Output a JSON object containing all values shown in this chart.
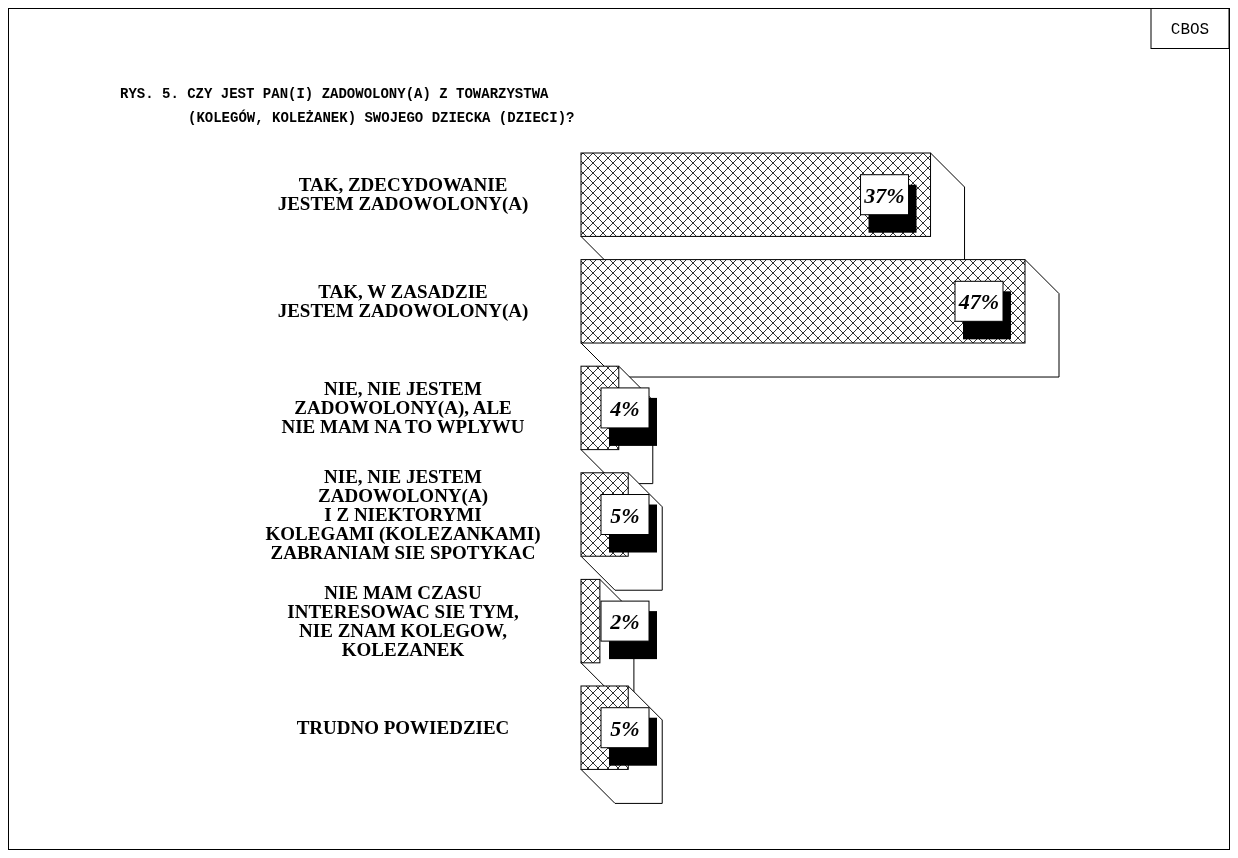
{
  "chart_data": {
    "type": "bar",
    "orientation": "horizontal",
    "title": "RYS. 5. CZY JEST PAN(I) ZADOWOLONY(A) Z TOWARZYSTWA\n(KOLEGÓW, KOLEŻANEK) SWOJEGO DZIECKA (DZIECI)?",
    "categories": [
      "TAK, ZDECYDOWANIE\nJESTEM ZADOWOLONY(A)",
      "TAK, W ZASADZIE\nJESTEM ZADOWOLONY(A)",
      "NIE, NIE JESTEM\nZADOWOLONY(A), ALE\nNIE MAM NA TO WPLYWU",
      "NIE, NIE JESTEM\nZADOWOLONY(A)\nI Z NIEKTORYMI\nKOLEGAMI (KOLEZANKAMI)\nZABRANIAM SIE SPOTYKAC",
      "NIE MAM CZASU\nINTERESOWAC SIE TYM,\nNIE ZNAM KOLEGOW,\nKOLEZANEK",
      "TRUDNO POWIEDZIEC"
    ],
    "values": [
      37,
      47,
      4,
      5,
      2,
      5
    ],
    "value_labels": [
      "37%",
      "47%",
      "4%",
      "5%",
      "2%",
      "5%"
    ],
    "annotations": [
      "CBOS"
    ]
  }
}
